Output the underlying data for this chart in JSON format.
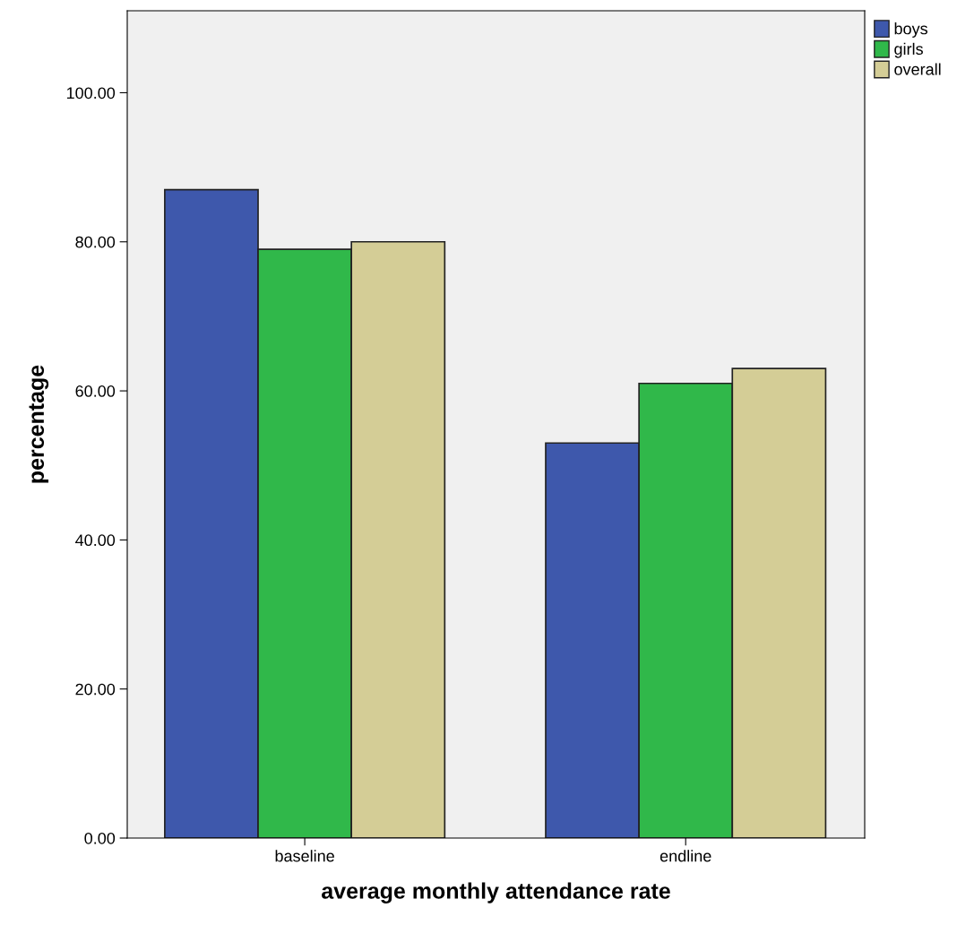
{
  "chart_data": {
    "type": "bar",
    "xlabel": "average monthly attendance rate",
    "ylabel": "percentage",
    "categories": [
      "baseline",
      "endline"
    ],
    "series": [
      {
        "name": "boys",
        "color": "#3e58ac",
        "values": [
          87,
          53
        ]
      },
      {
        "name": "girls",
        "color": "#30b84a",
        "values": [
          79,
          61
        ]
      },
      {
        "name": "overall",
        "color": "#d4cd96",
        "values": [
          80,
          63
        ]
      }
    ],
    "ylim": [
      0,
      111
    ],
    "yticks": [
      {
        "value": 0,
        "label": "0.00"
      },
      {
        "value": 20,
        "label": "20.00"
      },
      {
        "value": 40,
        "label": "40.00"
      },
      {
        "value": 60,
        "label": "60.00"
      },
      {
        "value": 80,
        "label": "80.00"
      },
      {
        "value": 100,
        "label": "100.00"
      }
    ],
    "grid": false,
    "legend": "top right"
  }
}
